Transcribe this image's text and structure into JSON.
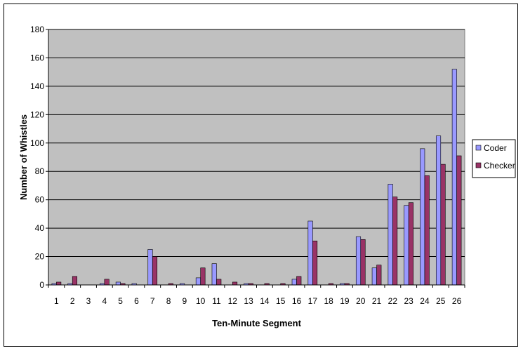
{
  "chart_data": {
    "type": "bar",
    "title": "",
    "xlabel": "Ten-Minute Segment",
    "ylabel": "Number of Whistles",
    "ylim": [
      0,
      180
    ],
    "yticks": [
      0,
      20,
      40,
      60,
      80,
      100,
      120,
      140,
      160,
      180
    ],
    "grid": true,
    "legend_position": "right",
    "categories": [
      "1",
      "2",
      "3",
      "4",
      "5",
      "6",
      "7",
      "8",
      "9",
      "10",
      "11",
      "12",
      "13",
      "14",
      "15",
      "16",
      "17",
      "18",
      "19",
      "20",
      "21",
      "22",
      "23",
      "24",
      "25",
      "26"
    ],
    "series": [
      {
        "name": "Coder",
        "color": "#9999ff",
        "values": [
          1,
          1,
          0,
          1,
          2,
          1,
          25,
          0,
          1,
          5,
          15,
          0,
          1,
          0,
          0,
          4,
          45,
          0,
          1,
          34,
          12,
          71,
          56,
          96,
          105,
          152
        ]
      },
      {
        "name": "Checker",
        "color": "#993366",
        "values": [
          2,
          6,
          0,
          4,
          1,
          0,
          20,
          1,
          0,
          12,
          4,
          2,
          1,
          1,
          1,
          6,
          31,
          1,
          1,
          32,
          14,
          62,
          58,
          77,
          85,
          91
        ]
      }
    ],
    "plot_background": "#c0c0c0"
  }
}
